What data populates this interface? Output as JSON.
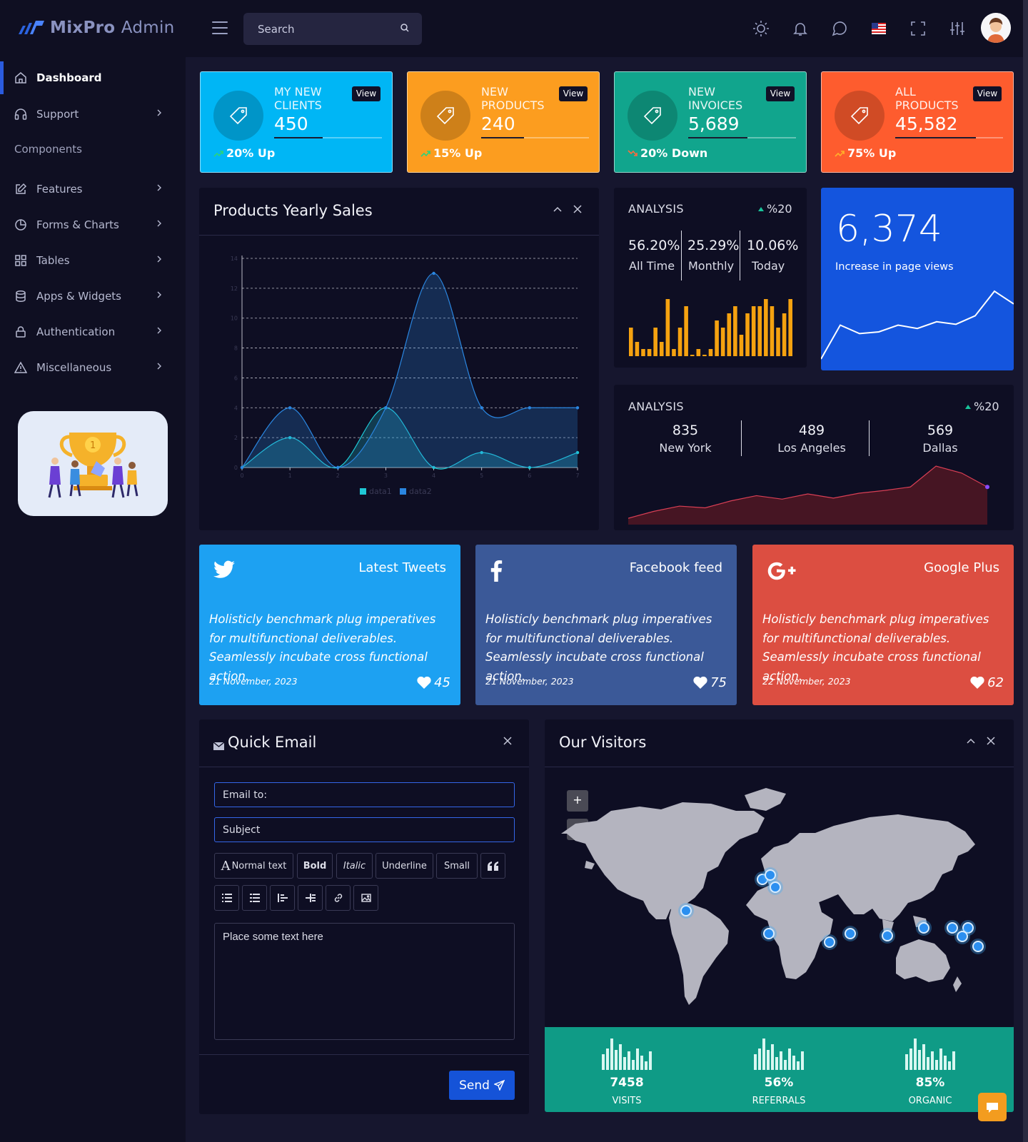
{
  "brand": {
    "name_bold": "MixPro",
    "name_light": "Admin"
  },
  "search": {
    "placeholder": "Search"
  },
  "topbar_icons": [
    "sun-icon",
    "bell-icon",
    "chat-icon",
    "us-flag-icon",
    "fullscreen-icon",
    "sliders-icon"
  ],
  "sidebar": {
    "items": [
      {
        "label": "Dashboard",
        "icon": "home-icon"
      },
      {
        "label": "Support",
        "icon": "headset-icon"
      },
      {
        "label": "Features",
        "icon": "edit-icon"
      },
      {
        "label": "Forms & Charts",
        "icon": "pie-chart-icon"
      },
      {
        "label": "Tables",
        "icon": "grid-icon"
      },
      {
        "label": "Apps & Widgets",
        "icon": "database-icon"
      },
      {
        "label": "Authentication",
        "icon": "lock-icon"
      },
      {
        "label": "Miscellaneous",
        "icon": "warning-icon"
      }
    ],
    "heading": "Components"
  },
  "stats": [
    {
      "label_line1": "MY NEW",
      "label_line2": "CLIENTS",
      "value": "450",
      "view": "View",
      "trend": "20% Up",
      "trend_dir": "up",
      "progress": 0.45,
      "color": "#00b6f5"
    },
    {
      "label_line1": "NEW",
      "label_line2": "PRODUCTS",
      "value": "240",
      "view": "View",
      "trend": "15% Up",
      "trend_dir": "up",
      "progress": 0.4,
      "color": "#fc9d1f"
    },
    {
      "label_line1": "NEW",
      "label_line2": "INVOICES",
      "value": "5,689",
      "view": "View",
      "trend": "20% Down",
      "trend_dir": "down",
      "progress": 0.55,
      "color": "#11a58d"
    },
    {
      "label_line1": "ALL",
      "label_line2": "PRODUCTS",
      "value": "45,582",
      "view": "View",
      "trend": "75% Up",
      "trend_dir": "up",
      "progress": 0.75,
      "color": "#fe5c2e"
    }
  ],
  "sales_card": {
    "title": "Products Yearly Sales"
  },
  "chart_data": {
    "type": "area",
    "title": "",
    "x": [
      0,
      1,
      2,
      3,
      4,
      5,
      6,
      7
    ],
    "ylim": [
      0,
      14
    ],
    "yticks": [
      0,
      2,
      4,
      6,
      8,
      10,
      12,
      14
    ],
    "grid": true,
    "legend": "bottom",
    "series": [
      {
        "name": "data1",
        "values": [
          0,
          2,
          0,
          4,
          0,
          1,
          0,
          1
        ],
        "color": "#1fc8d6"
      },
      {
        "name": "data2",
        "values": [
          0,
          4,
          0,
          4,
          13,
          4,
          4,
          4
        ],
        "color": "#2a86e0"
      }
    ]
  },
  "analysis1": {
    "title": "ANALYSIS",
    "pct": "%20",
    "metrics": [
      {
        "value": "56.20%",
        "label": "All Time"
      },
      {
        "value": "25.29%",
        "label": "Monthly"
      },
      {
        "value": "10.06%",
        "label": "Today"
      }
    ],
    "bars": [
      4,
      2,
      1,
      1,
      4,
      2,
      8,
      1,
      4,
      7,
      0,
      1,
      0,
      1,
      5,
      4,
      6,
      7,
      3,
      6,
      7,
      7,
      8,
      7,
      4,
      6,
      8
    ],
    "bar_color": "#f5a210"
  },
  "pageviews": {
    "value": "6,374",
    "label": "Increase in page views",
    "trend": [
      1,
      5,
      4,
      4.2,
      5,
      4.6,
      5.4,
      5.1,
      6.1,
      9,
      7.5
    ],
    "color": "#1455de"
  },
  "analysis2": {
    "title": "ANALYSIS",
    "pct": "%20",
    "cities": [
      {
        "value": "835",
        "label": "New York"
      },
      {
        "value": "489",
        "label": "Los Angeles"
      },
      {
        "value": "569",
        "label": "Dallas"
      }
    ],
    "trend": [
      1,
      3,
      4.5,
      4,
      6,
      7.5,
      6.5,
      8,
      6.8,
      8.2,
      9,
      10,
      16,
      14,
      10
    ]
  },
  "social": [
    {
      "name": "Latest Tweets",
      "icon": "twitter-icon",
      "text": "Holisticly benchmark plug imperatives for multifunctional deliverables. Seamlessly incubate cross functional action.",
      "date": "21 November, 2023",
      "likes": "45",
      "color": "#1da1f2"
    },
    {
      "name": "Facebook feed",
      "icon": "facebook-icon",
      "text": "Holisticly benchmark plug imperatives for multifunctional deliverables. Seamlessly incubate cross functional action.",
      "date": "21 November, 2023",
      "likes": "75",
      "color": "#3b5998"
    },
    {
      "name": "Google Plus",
      "icon": "google-plus-icon",
      "text": "Holisticly benchmark plug imperatives for multifunctional deliverables. Seamlessly incubate cross functional action.",
      "date": "22 November, 2023",
      "likes": "62",
      "color": "#dc4e41"
    }
  ],
  "email": {
    "title": "Quick Email",
    "to_placeholder": "Email to:",
    "subject_placeholder": "Subject",
    "toolbar": [
      "Normal text",
      "Bold",
      "Italic",
      "Underline",
      "Small"
    ],
    "body_placeholder": "Place some text here",
    "send": "Send"
  },
  "visitors": {
    "title": "Our Visitors",
    "zoom_in": "+",
    "zoom_out": "-",
    "stats": [
      {
        "value": "7458",
        "label": "VISITS"
      },
      {
        "value": "56%",
        "label": "REFERRALS"
      },
      {
        "value": "85%",
        "label": "ORGANIC"
      }
    ]
  }
}
